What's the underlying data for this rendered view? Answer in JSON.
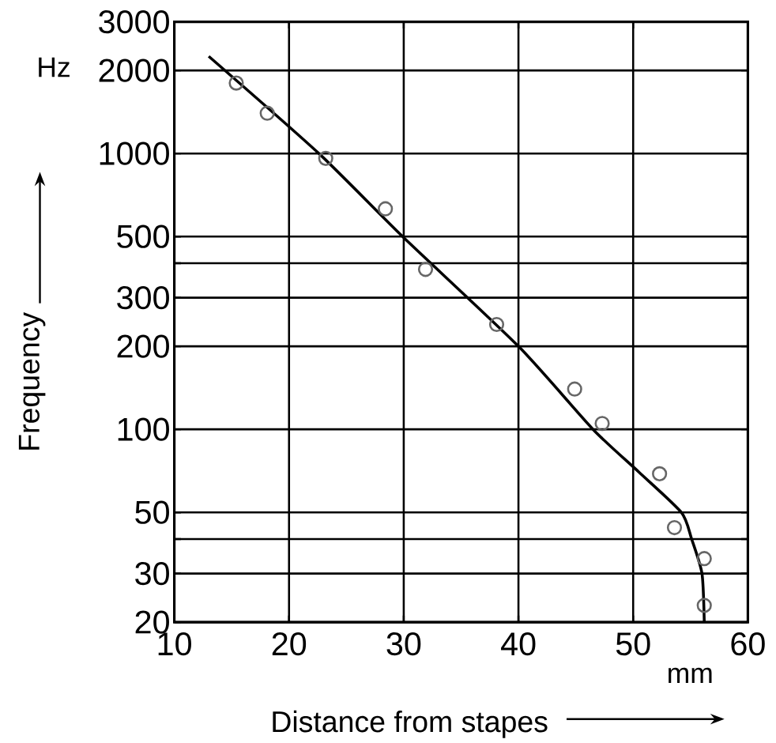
{
  "chart_data": {
    "type": "scatter",
    "xlabel": "Distance from stapes",
    "ylabel": "Frequency",
    "annotations": [
      "Hz",
      "mm"
    ],
    "xlim": [
      10,
      60
    ],
    "xticks": [
      10,
      20,
      30,
      40,
      50,
      60
    ],
    "ylim": [
      20,
      3000
    ],
    "log": "y",
    "yticks": [
      20,
      30,
      {
        "value": 40,
        "label": null
      },
      50,
      100,
      200,
      300,
      {
        "value": 400,
        "label": null
      },
      500,
      1000,
      2000,
      3000
    ],
    "grid": true,
    "series": [
      {
        "type": "scatter",
        "marker": "circle",
        "color": "#666666",
        "x": [
          15.4,
          18.1,
          23.2,
          28.4,
          31.9,
          38.1,
          44.9,
          47.3,
          52.3,
          53.6,
          56.2,
          56.2
        ],
        "values": [
          1800,
          1400,
          960,
          630,
          380,
          240,
          140,
          105,
          69,
          44,
          34,
          23
        ]
      },
      {
        "type": "line",
        "color": "#000000",
        "marker": "none",
        "x": [
          13,
          22.6,
          29.9,
          40,
          46.5,
          50.5,
          54.2,
          55.1,
          56,
          56.2
        ],
        "values": [
          2250,
          1000,
          500,
          200,
          100,
          70,
          50,
          40,
          30,
          20
        ]
      }
    ]
  }
}
